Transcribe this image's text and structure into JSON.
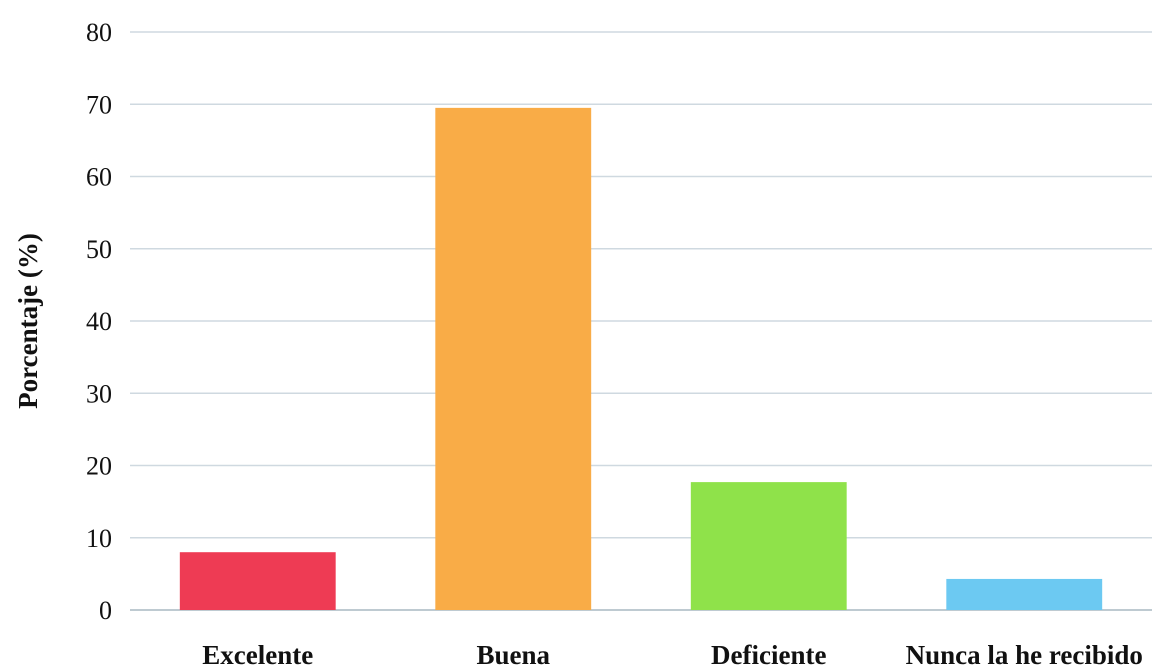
{
  "chart_data": {
    "type": "bar",
    "title": "",
    "xlabel": "",
    "ylabel": "Porcentaje (%)",
    "ylim": [
      0,
      80
    ],
    "yticks": [
      0,
      10,
      20,
      30,
      40,
      50,
      60,
      70,
      80
    ],
    "grid": true,
    "legend": "none",
    "categories": [
      "Excelente",
      "Buena",
      "Deficiente",
      "Nunca la he recibido"
    ],
    "values": [
      8,
      69.5,
      17.7,
      4.3
    ],
    "colors": [
      "#ee3b54",
      "#f9ac47",
      "#8fe24a",
      "#6cc9f2"
    ]
  }
}
